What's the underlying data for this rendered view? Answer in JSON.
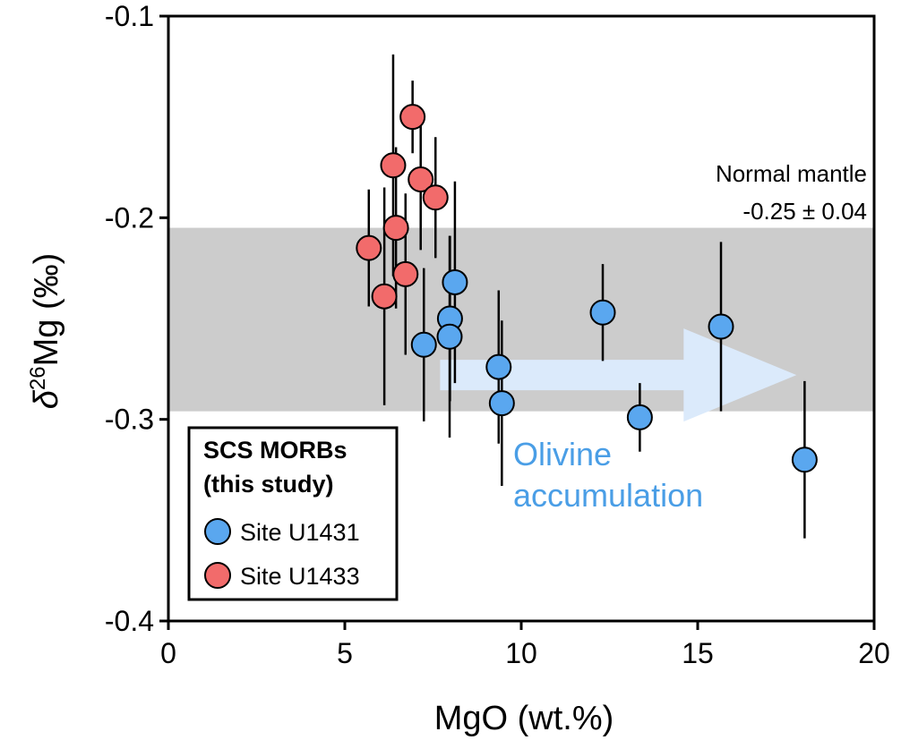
{
  "chart_data": {
    "type": "scatter",
    "xlabel": "MgO (wt.%)",
    "ylabel_symbol": "δ",
    "ylabel_sup": "26",
    "ylabel_rest": "Mg (‰)",
    "xlim": [
      0,
      20
    ],
    "ylim": [
      -0.4,
      -0.1
    ],
    "x_ticks": [
      0,
      5,
      10,
      15,
      20
    ],
    "y_ticks": [
      -0.1,
      -0.2,
      -0.3,
      -0.4
    ],
    "x_tick_labels": [
      "0",
      "5",
      "10",
      "15",
      "20"
    ],
    "y_tick_labels": [
      "-0.1",
      "-0.2",
      "-0.3",
      "-0.4"
    ],
    "grid": false,
    "band": {
      "y_from": -0.296,
      "y_to": -0.205,
      "color": "#cccccc",
      "label_line1": "Normal mantle",
      "label_line2": "-0.25 ± 0.04"
    },
    "trend_arrow": {
      "x_from": 7.7,
      "x_to": 17.8,
      "y": -0.278,
      "color": "#dbeafb",
      "label_line1": "Olivine",
      "label_line2": "accumulation",
      "label_color": "#4a9ee6"
    },
    "legend": {
      "position": "bottom-left",
      "title_line1": "SCS MORBs",
      "title_line2": "(this study)"
    },
    "series": [
      {
        "name": "Site U1433",
        "color": "#f26b6b",
        "points": [
          {
            "x": 6.92,
            "y": -0.15,
            "err": 0.018
          },
          {
            "x": 6.37,
            "y": -0.174,
            "err": 0.055
          },
          {
            "x": 7.15,
            "y": -0.181,
            "err": 0.035
          },
          {
            "x": 7.57,
            "y": -0.19,
            "err": 0.03
          },
          {
            "x": 6.45,
            "y": -0.205,
            "err": 0.04
          },
          {
            "x": 5.68,
            "y": -0.215,
            "err": 0.029
          },
          {
            "x": 6.72,
            "y": -0.228,
            "err": 0.04
          },
          {
            "x": 6.12,
            "y": -0.239,
            "err": 0.054
          }
        ]
      },
      {
        "name": "Site U1431",
        "color": "#5aa7ef",
        "points": [
          {
            "x": 8.12,
            "y": -0.232,
            "err": 0.05
          },
          {
            "x": 7.98,
            "y": -0.25,
            "err": 0.041
          },
          {
            "x": 7.97,
            "y": -0.259,
            "err": 0.05
          },
          {
            "x": 7.24,
            "y": -0.263,
            "err": 0.038
          },
          {
            "x": 9.36,
            "y": -0.274,
            "err": 0.038
          },
          {
            "x": 9.45,
            "y": -0.292,
            "err": 0.041
          },
          {
            "x": 12.31,
            "y": -0.247,
            "err": 0.024
          },
          {
            "x": 15.66,
            "y": -0.254,
            "err": 0.042
          },
          {
            "x": 13.36,
            "y": -0.299,
            "err": 0.017
          },
          {
            "x": 18.03,
            "y": -0.32,
            "err": 0.039
          }
        ]
      }
    ]
  }
}
